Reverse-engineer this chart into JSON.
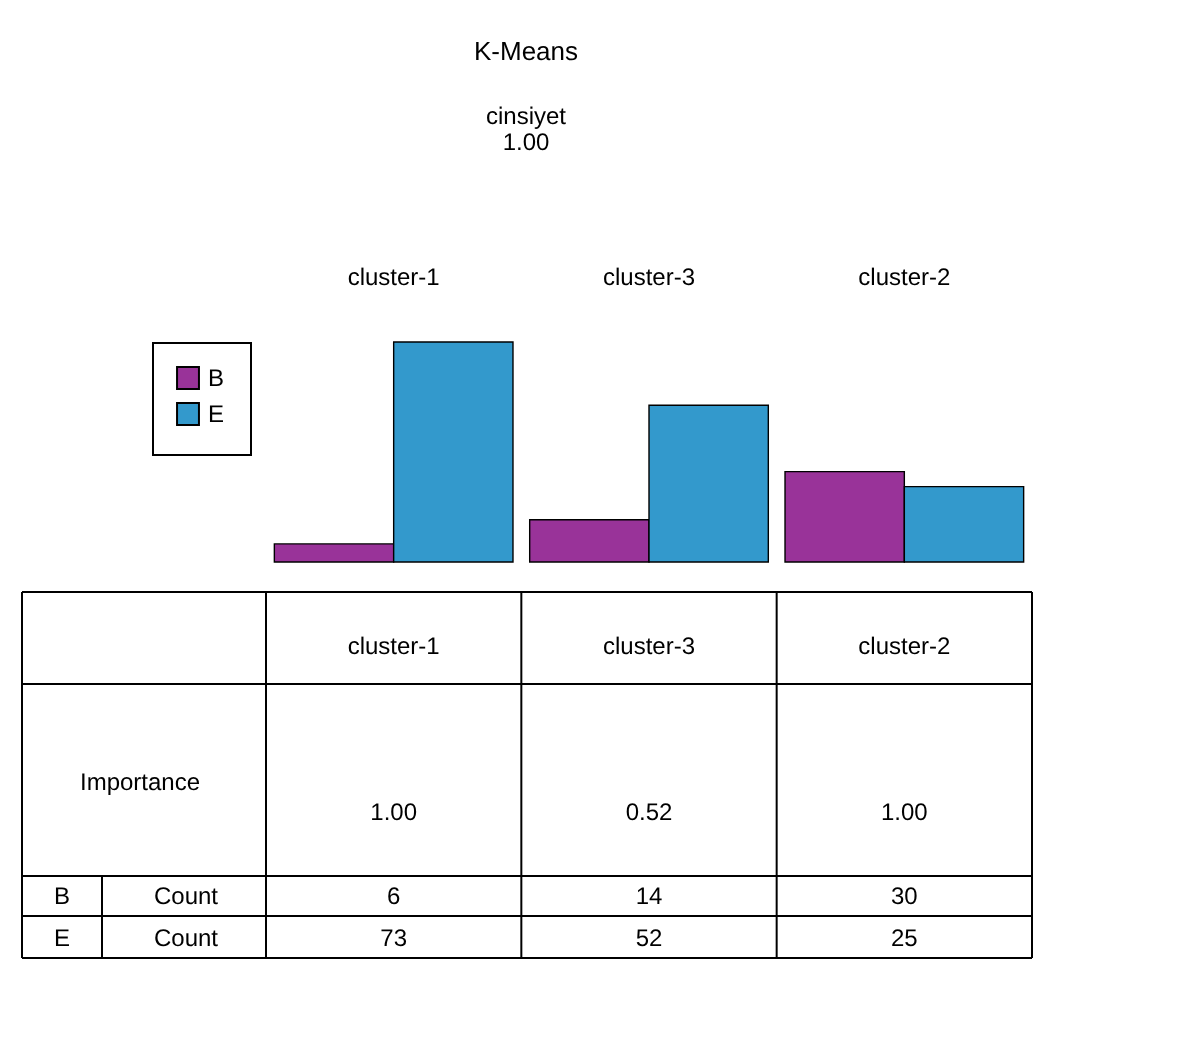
{
  "chart_data": {
    "type": "bar",
    "title": "K-Means",
    "annotations": [
      "cinsiyet",
      "1.00",
      "Importance",
      "1.00",
      "0.52",
      "1.00",
      "Count"
    ],
    "categories": [
      "cluster-1",
      "cluster-3",
      "cluster-2"
    ],
    "series": [
      {
        "name": "B",
        "color": "#993399",
        "values": [
          6,
          14,
          30
        ]
      },
      {
        "name": "E",
        "color": "#3399cc",
        "values": [
          73,
          52,
          25
        ]
      }
    ],
    "data_labels": true,
    "legend": "left"
  }
}
